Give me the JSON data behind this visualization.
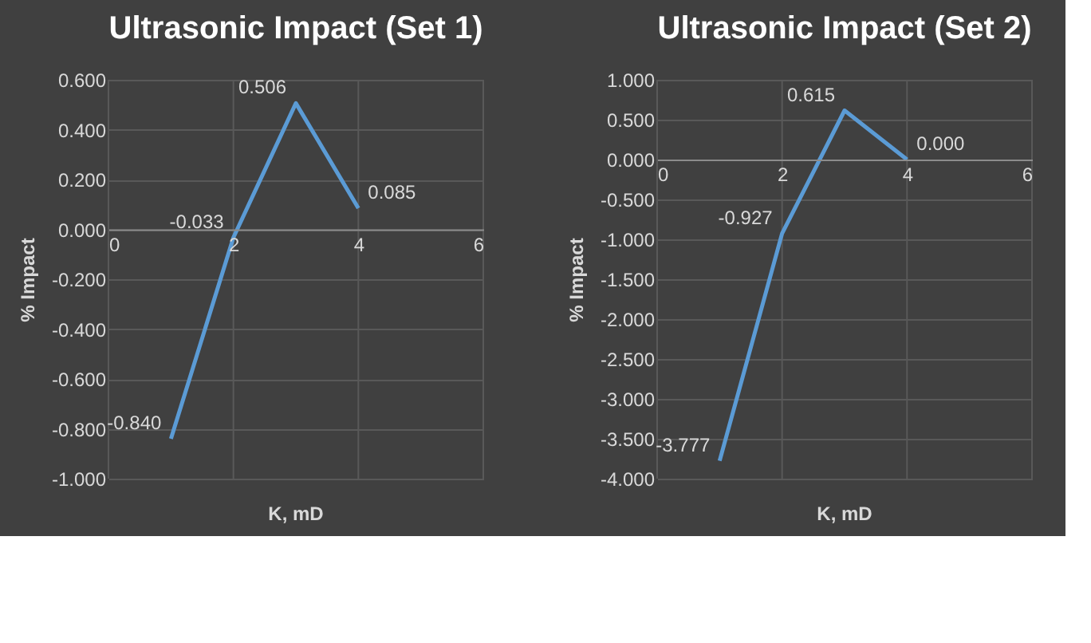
{
  "chart_data": [
    {
      "type": "line",
      "title": "Ultrasonic Impact (Set 1)",
      "xlabel": "K, mD",
      "ylabel": "% Impact",
      "x": [
        1,
        2,
        3,
        4
      ],
      "series": [
        {
          "color": "#5b9bd5",
          "values": [
            -0.84,
            -0.033,
            0.506,
            0.085
          ],
          "value_labels": [
            "-0.840",
            "-0.033",
            "0.506",
            "0.085"
          ]
        }
      ],
      "xlim": [
        0,
        6
      ],
      "xticks": [
        0,
        2,
        4,
        6
      ],
      "ylim": [
        -1.0,
        0.6
      ],
      "yticks": [
        {
          "value": -1.0,
          "label": "-1.000"
        },
        {
          "value": -0.8,
          "label": "-0.800"
        },
        {
          "value": -0.6,
          "label": "-0.600"
        },
        {
          "value": -0.4,
          "label": "-0.400"
        },
        {
          "value": -0.2,
          "label": "-0.200"
        },
        {
          "value": 0,
          "label": "0.000"
        },
        {
          "value": 0.2,
          "label": "0.200"
        },
        {
          "value": 0.4,
          "label": "0.400"
        },
        {
          "value": 0.6,
          "label": "0.600"
        }
      ],
      "grid": true,
      "marker": "none",
      "line_style": "solid"
    },
    {
      "type": "line",
      "title": "Ultrasonic Impact (Set 2)",
      "xlabel": "K, mD",
      "ylabel": "% Impact",
      "x": [
        1,
        2,
        3,
        4
      ],
      "series": [
        {
          "color": "#5b9bd5",
          "values": [
            -3.777,
            -0.927,
            0.615,
            0.0
          ],
          "value_labels": [
            "-3.777",
            "-0.927",
            "0.615",
            "0.000"
          ]
        }
      ],
      "xlim": [
        0,
        6
      ],
      "xticks": [
        0,
        2,
        4,
        6
      ],
      "ylim": [
        -4.0,
        1.0
      ],
      "yticks": [
        {
          "value": -4.0,
          "label": "-4.000"
        },
        {
          "value": -3.5,
          "label": "-3.500"
        },
        {
          "value": -3.0,
          "label": "-3.000"
        },
        {
          "value": -2.5,
          "label": "-2.500"
        },
        {
          "value": -2.0,
          "label": "-2.000"
        },
        {
          "value": -1.5,
          "label": "-1.500"
        },
        {
          "value": -1.0,
          "label": "-1.000"
        },
        {
          "value": -0.5,
          "label": "-0.500"
        },
        {
          "value": 0,
          "label": "0.000"
        },
        {
          "value": 0.5,
          "label": "0.500"
        },
        {
          "value": 1.0,
          "label": "1.000"
        }
      ],
      "grid": true,
      "marker": "none",
      "line_style": "solid"
    }
  ]
}
